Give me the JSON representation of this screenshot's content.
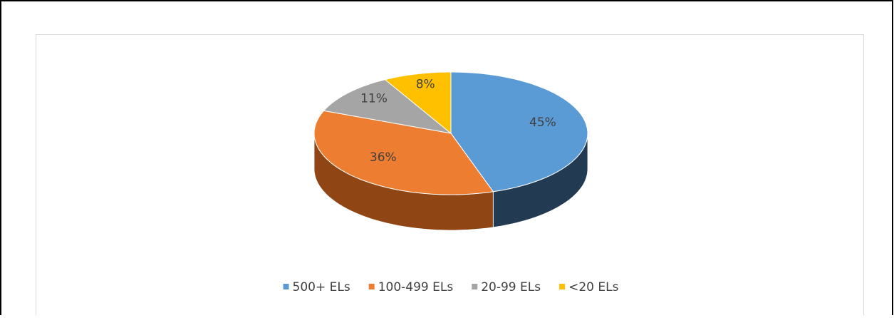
{
  "chart_data": {
    "type": "pie3d",
    "categories": [
      "500+ ELs",
      "100-499 ELs",
      "20-99 ELs",
      "<20 ELs"
    ],
    "values": [
      45,
      36,
      11,
      8
    ],
    "value_labels": [
      "45%",
      "36%",
      "11%",
      "8%"
    ],
    "colors": [
      "#5b9bd5",
      "#ed7d31",
      "#a5a5a5",
      "#ffc000"
    ],
    "side_colors": [
      "#223a52",
      "#8f4514",
      "#666666",
      "#9a7400"
    ],
    "legend": "bottom"
  }
}
